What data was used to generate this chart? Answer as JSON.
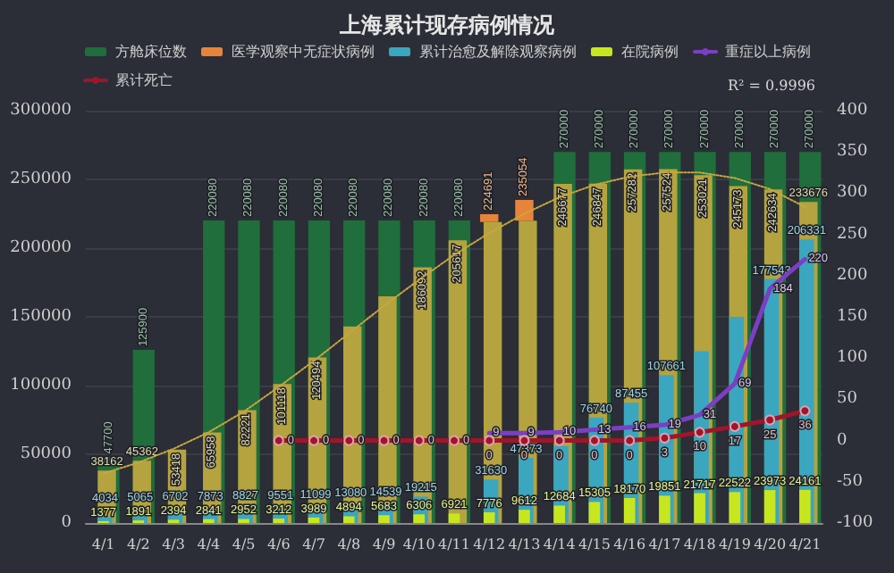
{
  "chart_data": {
    "type": "bar",
    "title": "上海累计现存病例情况",
    "categories": [
      "4/1",
      "4/2",
      "4/3",
      "4/4",
      "4/5",
      "4/6",
      "4/7",
      "4/8",
      "4/9",
      "4/10",
      "4/11",
      "4/12",
      "4/13",
      "4/14",
      "4/15",
      "4/16",
      "4/17",
      "4/18",
      "4/19",
      "4/20",
      "4/21"
    ],
    "ylim": [
      0,
      300000
    ],
    "yticks": [
      0,
      50000,
      100000,
      150000,
      200000,
      250000,
      300000
    ],
    "y2lim": [
      -100,
      400
    ],
    "y2ticks": [
      -100,
      -50,
      0,
      50,
      100,
      150,
      200,
      250,
      300,
      350,
      400
    ],
    "grid": "y",
    "legend": "top",
    "annotations": [
      "R² = 0.9996"
    ],
    "series": [
      {
        "name": "方舱床位数",
        "type": "bar",
        "color": "#1f6e3c",
        "values": [
          47700,
          125900,
          null,
          220080,
          220080,
          220080,
          220080,
          220080,
          220080,
          220080,
          220080,
          null,
          null,
          270000,
          270000,
          270000,
          270000,
          270000,
          270000,
          270000,
          270000
        ],
        "value_labels": [
          "47700",
          "125900",
          null,
          "220080",
          "220080",
          "220080",
          "220080",
          "220080",
          "220080",
          "220080",
          "220080",
          null,
          null,
          "270000",
          "270000",
          "270000",
          "270000",
          "270000",
          "270000",
          "270000",
          "270000"
        ]
      },
      {
        "type": "bar",
        "color": "#b5a33f",
        "values": [
          38162,
          45362,
          53418,
          65958,
          82221,
          101118,
          120494,
          143000,
          165000,
          186092,
          205617,
          219000,
          220000,
          246677,
          246847,
          257282,
          257524,
          253021,
          245173,
          242634,
          233676
        ],
        "value_labels": [
          "38162",
          "45362",
          "53418",
          "65958",
          "82221",
          "101118",
          "120494",
          null,
          null,
          "186092",
          "205617",
          null,
          null,
          "246677",
          "246847",
          "257282",
          "257524",
          "253021",
          "245173",
          "242634",
          "233676"
        ]
      },
      {
        "name": "医学观察中无症状病例",
        "type": "bar",
        "color": "#e8843a",
        "base": [
          null,
          null,
          null,
          null,
          null,
          null,
          null,
          null,
          null,
          null,
          null,
          219000,
          220000,
          null,
          null,
          null,
          null,
          null,
          null,
          null,
          null
        ],
        "values": [
          null,
          null,
          null,
          null,
          null,
          null,
          null,
          null,
          null,
          null,
          null,
          5691,
          15054,
          null,
          null,
          null,
          null,
          null,
          null,
          null,
          null
        ],
        "value_labels": [
          null,
          null,
          null,
          null,
          null,
          null,
          null,
          null,
          null,
          null,
          null,
          "224691",
          "235054",
          null,
          null,
          null,
          null,
          null,
          null,
          null,
          null
        ]
      },
      {
        "name": "累计治愈及解除观察病例",
        "type": "bar",
        "color": "#3aa6c0",
        "values": [
          4034,
          5065,
          6702,
          7873,
          8827,
          9551,
          11099,
          13080,
          14539,
          19215,
          null,
          31630,
          47373,
          56000,
          76740,
          87455,
          107661,
          125000,
          150000,
          177543,
          206331
        ],
        "value_labels": [
          "4034",
          "5065",
          "6702",
          "7873",
          "8827",
          "9551",
          "11099",
          "13080",
          "14539",
          "19215",
          null,
          "31630",
          "47373",
          null,
          "76740",
          "87455",
          "107661",
          null,
          null,
          "177543",
          "206331"
        ]
      },
      {
        "name": "在院病例",
        "type": "bar",
        "color": "#c8e61e",
        "values": [
          1377,
          1891,
          2394,
          2841,
          2952,
          3212,
          3989,
          4894,
          5683,
          6306,
          6921,
          7776,
          9612,
          12684,
          15305,
          18170,
          19851,
          21717,
          22522,
          23973,
          24161
        ],
        "value_labels": [
          "1377",
          "1891",
          "2394",
          "2841",
          "2952",
          "3212",
          "3989",
          "4894",
          "5683",
          "6306",
          "6921",
          "7776",
          "9612",
          "12684",
          "15305",
          "18170",
          "19851",
          "21717",
          "22522",
          "23973",
          "24161"
        ]
      },
      {
        "type": "line",
        "color": "#c9a640",
        "line_style": "dotted",
        "marker": "none",
        "values": [
          36000,
          44000,
          54000,
          66000,
          81000,
          99000,
          118000,
          138000,
          158000,
          177000,
          195000,
          211000,
          225000,
          237000,
          246000,
          252000,
          255000,
          255000,
          251000,
          243000,
          230000
        ]
      },
      {
        "name": "重症以上病例",
        "type": "line",
        "axis": "y2",
        "color": "#7b3fc4",
        "marker": "none",
        "values": [
          null,
          null,
          null,
          null,
          null,
          null,
          null,
          null,
          null,
          null,
          null,
          9,
          9,
          10,
          13,
          16,
          19,
          31,
          69,
          184,
          220
        ],
        "value_labels": [
          null,
          null,
          null,
          null,
          null,
          null,
          null,
          null,
          null,
          null,
          null,
          "9",
          "9",
          "10",
          "13",
          "16",
          "19",
          "31",
          "69",
          "184",
          "220"
        ]
      },
      {
        "name": "累计死亡",
        "type": "line",
        "axis": "y2",
        "color": "#a0152a",
        "marker": "circle",
        "values": [
          null,
          null,
          null,
          null,
          null,
          0,
          0,
          0,
          0,
          0,
          0,
          0,
          0,
          0,
          0,
          0,
          3,
          10,
          17,
          25,
          36
        ],
        "value_labels": [
          null,
          null,
          null,
          null,
          null,
          "0",
          "0",
          "0",
          "0",
          "0",
          "0",
          "0",
          "0",
          "0",
          "0",
          "0",
          "3",
          "10",
          "17",
          "25",
          "36"
        ]
      }
    ]
  }
}
